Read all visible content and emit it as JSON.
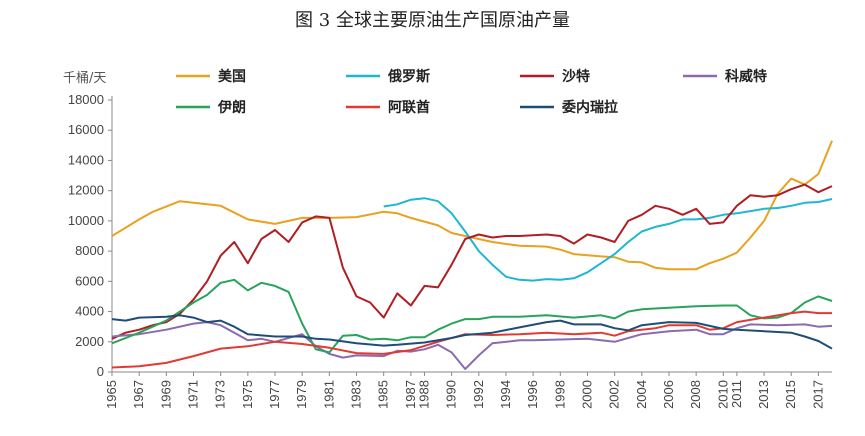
{
  "title": "图 3  全球主要原油生产国原油产量",
  "chart_data": {
    "type": "line",
    "title": "图 3  全球主要原油生产国原油产量",
    "ylabel": "千桶/天",
    "xlabel": "",
    "ylim": [
      0,
      18000
    ],
    "yticks": [
      0,
      2000,
      4000,
      6000,
      8000,
      10000,
      12000,
      14000,
      16000,
      18000
    ],
    "xlim": [
      1965,
      2018
    ],
    "xticks": [
      1965,
      1967,
      1969,
      1971,
      1973,
      1975,
      1977,
      1979,
      1981,
      1983,
      1985,
      1987,
      1988,
      1990,
      1992,
      1994,
      1996,
      1998,
      2000,
      2002,
      2004,
      2006,
      2008,
      2010,
      2011,
      2013,
      2015,
      2017
    ],
    "grid": false,
    "legend": "top",
    "series": [
      {
        "name": "美国",
        "color": "#E8A21E",
        "points": [
          [
            1965,
            9000
          ],
          [
            1967,
            10100
          ],
          [
            1968,
            10600
          ],
          [
            1970,
            11300
          ],
          [
            1973,
            11000
          ],
          [
            1975,
            10100
          ],
          [
            1977,
            9800
          ],
          [
            1979,
            10200
          ],
          [
            1981,
            10200
          ],
          [
            1983,
            10250
          ],
          [
            1985,
            10600
          ],
          [
            1986,
            10500
          ],
          [
            1987,
            10200
          ],
          [
            1989,
            9700
          ],
          [
            1990,
            9200
          ],
          [
            1991,
            9000
          ],
          [
            1993,
            8600
          ],
          [
            1995,
            8350
          ],
          [
            1997,
            8300
          ],
          [
            1998,
            8100
          ],
          [
            1999,
            7800
          ],
          [
            2001,
            7650
          ],
          [
            2002,
            7600
          ],
          [
            2003,
            7300
          ],
          [
            2004,
            7250
          ],
          [
            2005,
            6900
          ],
          [
            2006,
            6800
          ],
          [
            2008,
            6800
          ],
          [
            2009,
            7200
          ],
          [
            2010,
            7500
          ],
          [
            2011,
            7900
          ],
          [
            2012,
            8900
          ],
          [
            2013,
            10000
          ],
          [
            2014,
            11800
          ],
          [
            2015,
            12800
          ],
          [
            2016,
            12400
          ],
          [
            2017,
            13100
          ],
          [
            2018,
            15300
          ]
        ]
      },
      {
        "name": "俄罗斯",
        "color": "#1FB6D3",
        "points": [
          [
            1985,
            10950
          ],
          [
            1986,
            11100
          ],
          [
            1987,
            11400
          ],
          [
            1988,
            11500
          ],
          [
            1989,
            11300
          ],
          [
            1990,
            10500
          ],
          [
            1991,
            9300
          ],
          [
            1992,
            8000
          ],
          [
            1993,
            7100
          ],
          [
            1994,
            6300
          ],
          [
            1995,
            6100
          ],
          [
            1996,
            6050
          ],
          [
            1997,
            6150
          ],
          [
            1998,
            6100
          ],
          [
            1999,
            6200
          ],
          [
            2000,
            6600
          ],
          [
            2001,
            7200
          ],
          [
            2002,
            7800
          ],
          [
            2003,
            8600
          ],
          [
            2004,
            9300
          ],
          [
            2005,
            9600
          ],
          [
            2006,
            9800
          ],
          [
            2007,
            10100
          ],
          [
            2008,
            10100
          ],
          [
            2009,
            10200
          ],
          [
            2010,
            10400
          ],
          [
            2011,
            10500
          ],
          [
            2012,
            10650
          ],
          [
            2013,
            10800
          ],
          [
            2014,
            10850
          ],
          [
            2015,
            11000
          ],
          [
            2016,
            11200
          ],
          [
            2017,
            11250
          ],
          [
            2018,
            11450
          ]
        ]
      },
      {
        "name": "沙特",
        "color": "#B01E23",
        "points": [
          [
            1965,
            2200
          ],
          [
            1966,
            2600
          ],
          [
            1967,
            2800
          ],
          [
            1968,
            3100
          ],
          [
            1969,
            3300
          ],
          [
            1970,
            3850
          ],
          [
            1971,
            4800
          ],
          [
            1972,
            6000
          ],
          [
            1973,
            7700
          ],
          [
            1974,
            8600
          ],
          [
            1975,
            7200
          ],
          [
            1976,
            8800
          ],
          [
            1977,
            9400
          ],
          [
            1978,
            8600
          ],
          [
            1979,
            9900
          ],
          [
            1980,
            10300
          ],
          [
            1981,
            10200
          ],
          [
            1982,
            6900
          ],
          [
            1983,
            5000
          ],
          [
            1984,
            4600
          ],
          [
            1985,
            3600
          ],
          [
            1986,
            5200
          ],
          [
            1987,
            4400
          ],
          [
            1988,
            5700
          ],
          [
            1989,
            5600
          ],
          [
            1990,
            7100
          ],
          [
            1991,
            8800
          ],
          [
            1992,
            9100
          ],
          [
            1993,
            8900
          ],
          [
            1994,
            9000
          ],
          [
            1995,
            9000
          ],
          [
            1996,
            9050
          ],
          [
            1997,
            9100
          ],
          [
            1998,
            9000
          ],
          [
            1999,
            8500
          ],
          [
            2000,
            9100
          ],
          [
            2001,
            8900
          ],
          [
            2002,
            8600
          ],
          [
            2003,
            10000
          ],
          [
            2004,
            10400
          ],
          [
            2005,
            11000
          ],
          [
            2006,
            10800
          ],
          [
            2007,
            10400
          ],
          [
            2008,
            10800
          ],
          [
            2009,
            9800
          ],
          [
            2010,
            9900
          ],
          [
            2011,
            11000
          ],
          [
            2012,
            11700
          ],
          [
            2013,
            11600
          ],
          [
            2014,
            11700
          ],
          [
            2015,
            12100
          ],
          [
            2016,
            12400
          ],
          [
            2017,
            11900
          ],
          [
            2018,
            12300
          ]
        ]
      },
      {
        "name": "科威特",
        "color": "#8B6BB0",
        "points": [
          [
            1965,
            2350
          ],
          [
            1967,
            2500
          ],
          [
            1969,
            2800
          ],
          [
            1971,
            3200
          ],
          [
            1972,
            3300
          ],
          [
            1973,
            3100
          ],
          [
            1974,
            2600
          ],
          [
            1975,
            2100
          ],
          [
            1976,
            2200
          ],
          [
            1977,
            2000
          ],
          [
            1979,
            2500
          ],
          [
            1980,
            1700
          ],
          [
            1981,
            1200
          ],
          [
            1982,
            950
          ],
          [
            1983,
            1100
          ],
          [
            1985,
            1050
          ],
          [
            1986,
            1400
          ],
          [
            1987,
            1350
          ],
          [
            1988,
            1500
          ],
          [
            1989,
            1800
          ],
          [
            1990,
            1300
          ],
          [
            1991,
            200
          ],
          [
            1992,
            1100
          ],
          [
            1993,
            1900
          ],
          [
            1995,
            2100
          ],
          [
            1996,
            2100
          ],
          [
            1998,
            2150
          ],
          [
            2000,
            2200
          ],
          [
            2002,
            2000
          ],
          [
            2004,
            2500
          ],
          [
            2006,
            2700
          ],
          [
            2008,
            2800
          ],
          [
            2009,
            2500
          ],
          [
            2010,
            2500
          ],
          [
            2011,
            2900
          ],
          [
            2012,
            3150
          ],
          [
            2014,
            3100
          ],
          [
            2016,
            3150
          ],
          [
            2017,
            3000
          ],
          [
            2018,
            3050
          ]
        ]
      },
      {
        "name": "伊朗",
        "color": "#27A45A",
        "points": [
          [
            1965,
            1900
          ],
          [
            1967,
            2600
          ],
          [
            1969,
            3400
          ],
          [
            1971,
            4600
          ],
          [
            1972,
            5100
          ],
          [
            1973,
            5900
          ],
          [
            1974,
            6100
          ],
          [
            1975,
            5400
          ],
          [
            1976,
            5900
          ],
          [
            1977,
            5700
          ],
          [
            1978,
            5300
          ],
          [
            1979,
            3200
          ],
          [
            1980,
            1500
          ],
          [
            1981,
            1300
          ],
          [
            1982,
            2400
          ],
          [
            1983,
            2450
          ],
          [
            1984,
            2150
          ],
          [
            1985,
            2200
          ],
          [
            1986,
            2100
          ],
          [
            1987,
            2300
          ],
          [
            1988,
            2300
          ],
          [
            1989,
            2800
          ],
          [
            1990,
            3200
          ],
          [
            1991,
            3500
          ],
          [
            1992,
            3500
          ],
          [
            1993,
            3650
          ],
          [
            1995,
            3650
          ],
          [
            1997,
            3750
          ],
          [
            1999,
            3600
          ],
          [
            2001,
            3750
          ],
          [
            2002,
            3550
          ],
          [
            2003,
            4000
          ],
          [
            2004,
            4150
          ],
          [
            2006,
            4250
          ],
          [
            2008,
            4350
          ],
          [
            2010,
            4400
          ],
          [
            2011,
            4400
          ],
          [
            2012,
            3750
          ],
          [
            2013,
            3550
          ],
          [
            2014,
            3600
          ],
          [
            2015,
            3900
          ],
          [
            2016,
            4600
          ],
          [
            2017,
            5000
          ],
          [
            2018,
            4700
          ]
        ]
      },
      {
        "name": "阿联酋",
        "color": "#E03A35",
        "points": [
          [
            1965,
            300
          ],
          [
            1967,
            380
          ],
          [
            1969,
            600
          ],
          [
            1971,
            1050
          ],
          [
            1973,
            1550
          ],
          [
            1975,
            1700
          ],
          [
            1977,
            2000
          ],
          [
            1979,
            1850
          ],
          [
            1981,
            1600
          ],
          [
            1983,
            1250
          ],
          [
            1985,
            1200
          ],
          [
            1987,
            1450
          ],
          [
            1989,
            2000
          ],
          [
            1991,
            2500
          ],
          [
            1993,
            2450
          ],
          [
            1995,
            2500
          ],
          [
            1997,
            2600
          ],
          [
            1999,
            2500
          ],
          [
            2001,
            2600
          ],
          [
            2002,
            2400
          ],
          [
            2003,
            2700
          ],
          [
            2005,
            2900
          ],
          [
            2006,
            3100
          ],
          [
            2008,
            3100
          ],
          [
            2009,
            2800
          ],
          [
            2010,
            2900
          ],
          [
            2011,
            3300
          ],
          [
            2013,
            3600
          ],
          [
            2015,
            3900
          ],
          [
            2016,
            4000
          ],
          [
            2017,
            3900
          ],
          [
            2018,
            3900
          ]
        ]
      },
      {
        "name": "委内瑞拉",
        "color": "#1F4D78",
        "points": [
          [
            1965,
            3500
          ],
          [
            1966,
            3400
          ],
          [
            1967,
            3600
          ],
          [
            1969,
            3650
          ],
          [
            1970,
            3750
          ],
          [
            1971,
            3600
          ],
          [
            1972,
            3300
          ],
          [
            1973,
            3400
          ],
          [
            1974,
            3000
          ],
          [
            1975,
            2500
          ],
          [
            1977,
            2350
          ],
          [
            1979,
            2350
          ],
          [
            1980,
            2200
          ],
          [
            1981,
            2150
          ],
          [
            1983,
            1900
          ],
          [
            1985,
            1750
          ],
          [
            1986,
            1800
          ],
          [
            1988,
            1950
          ],
          [
            1990,
            2250
          ],
          [
            1991,
            2450
          ],
          [
            1993,
            2600
          ],
          [
            1995,
            2950
          ],
          [
            1997,
            3300
          ],
          [
            1998,
            3400
          ],
          [
            1999,
            3150
          ],
          [
            2001,
            3150
          ],
          [
            2002,
            2900
          ],
          [
            2003,
            2750
          ],
          [
            2004,
            3100
          ],
          [
            2006,
            3300
          ],
          [
            2008,
            3250
          ],
          [
            2009,
            3050
          ],
          [
            2010,
            2850
          ],
          [
            2011,
            2800
          ],
          [
            2013,
            2700
          ],
          [
            2015,
            2600
          ],
          [
            2016,
            2350
          ],
          [
            2017,
            2050
          ],
          [
            2018,
            1550
          ]
        ]
      }
    ]
  }
}
